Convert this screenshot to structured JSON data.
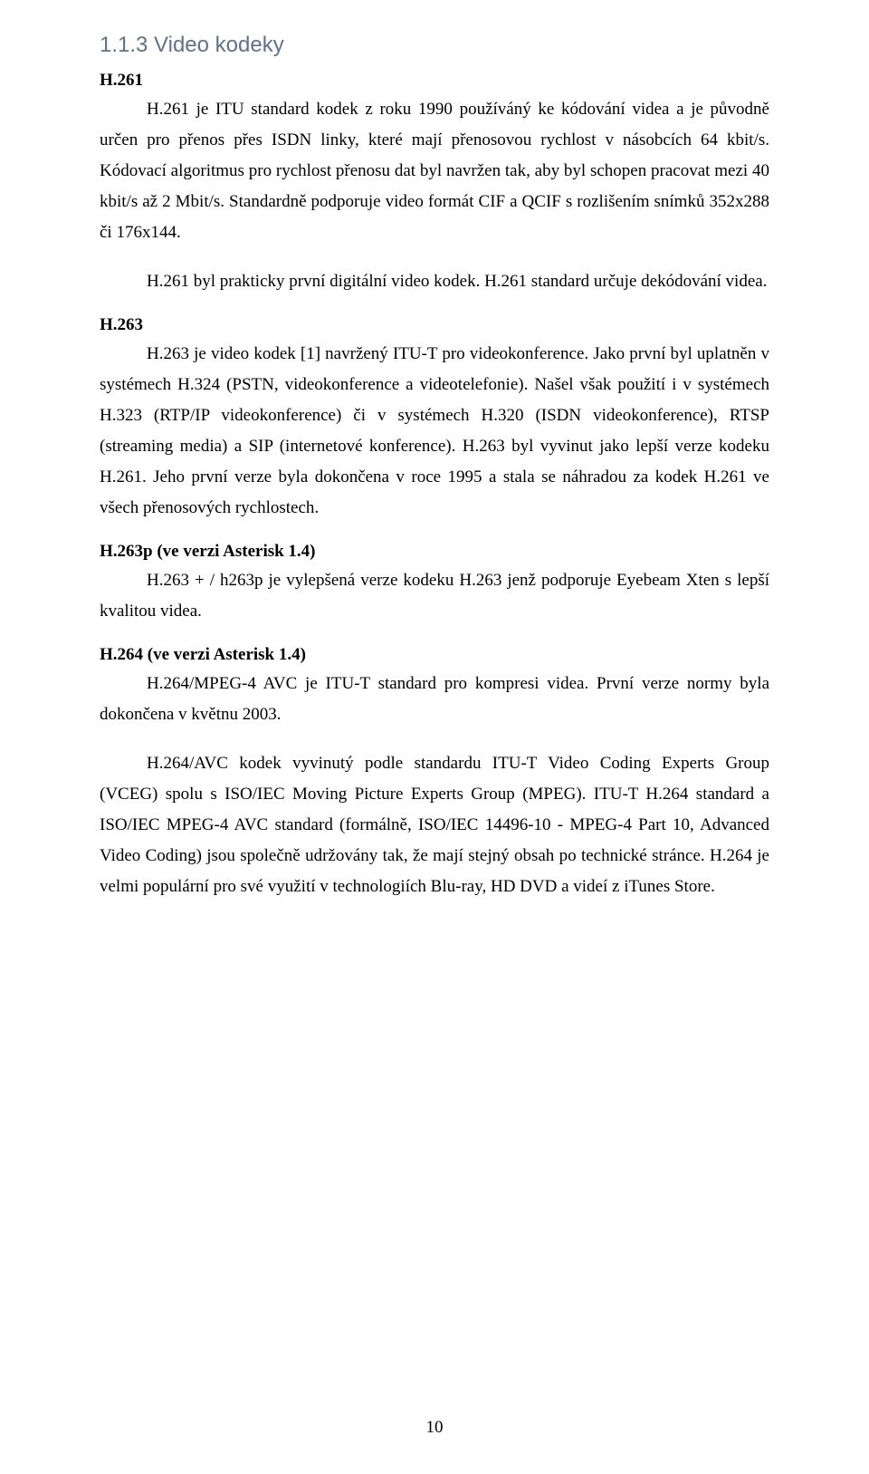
{
  "section": {
    "number_title": "1.1.3 Video kodeky"
  },
  "h261": {
    "title": "H.261",
    "p1": "H.261 je ITU standard kodek z roku 1990 používáný ke kódování videa a je původně určen pro přenos přes ISDN linky, které mají přenosovou rychlost v násobcích 64 kbit/s. Kódovací algoritmus pro rychlost přenosu dat byl navržen tak, aby byl schopen pracovat mezi 40 kbit/s až 2 Mbit/s. Standardně podporuje video formát CIF a QCIF s rozlišením snímků 352x288 či 176x144.",
    "p2": "H.261 byl prakticky první digitální video kodek. H.261 standard určuje dekódování videa."
  },
  "h263": {
    "title": "H.263",
    "p1": "H.263 je video kodek [1] navržený ITU-T pro videokonference. Jako první byl uplatněn v systémech H.324 (PSTN, videokonference a videotelefonie). Našel však použití i v systémech H.323 (RTP/IP videokonference) či v systémech H.320 (ISDN videokonference), RTSP (streaming media) a SIP (internetové konference). H.263 byl vyvinut jako lepší verze kodeku H.261. Jeho první verze byla dokončena v roce 1995 a stala se náhradou za kodek H.261 ve všech přenosových rychlostech."
  },
  "h263p": {
    "title": "H.263p (ve verzi Asterisk 1.4)",
    "p1": "H.263 + / h263p je vylepšená verze kodeku H.263 jenž podporuje Eyebeam Xten s lepší kvalitou videa."
  },
  "h264": {
    "title": "H.264 (ve verzi Asterisk 1.4)",
    "p1": "H.264/MPEG-4 AVC je ITU-T standard pro kompresi videa. První verze normy byla dokončena v květnu 2003.",
    "p2": "H.264/AVC kodek vyvinutý podle standardu ITU-T Video Coding Experts Group (VCEG) spolu s ISO/IEC Moving Picture Experts Group (MPEG). ITU-T H.264 standard a ISO/IEC MPEG-4 AVC standard (formálně, ISO/IEC 14496-10 - MPEG-4 Part 10, Advanced Video Coding) jsou společně udržovány tak, že mají stejný obsah po technické stránce. H.264 je velmi populární pro své využití v technologiích Blu-ray, HD DVD a videí z iTunes Store."
  },
  "page_number": "10"
}
